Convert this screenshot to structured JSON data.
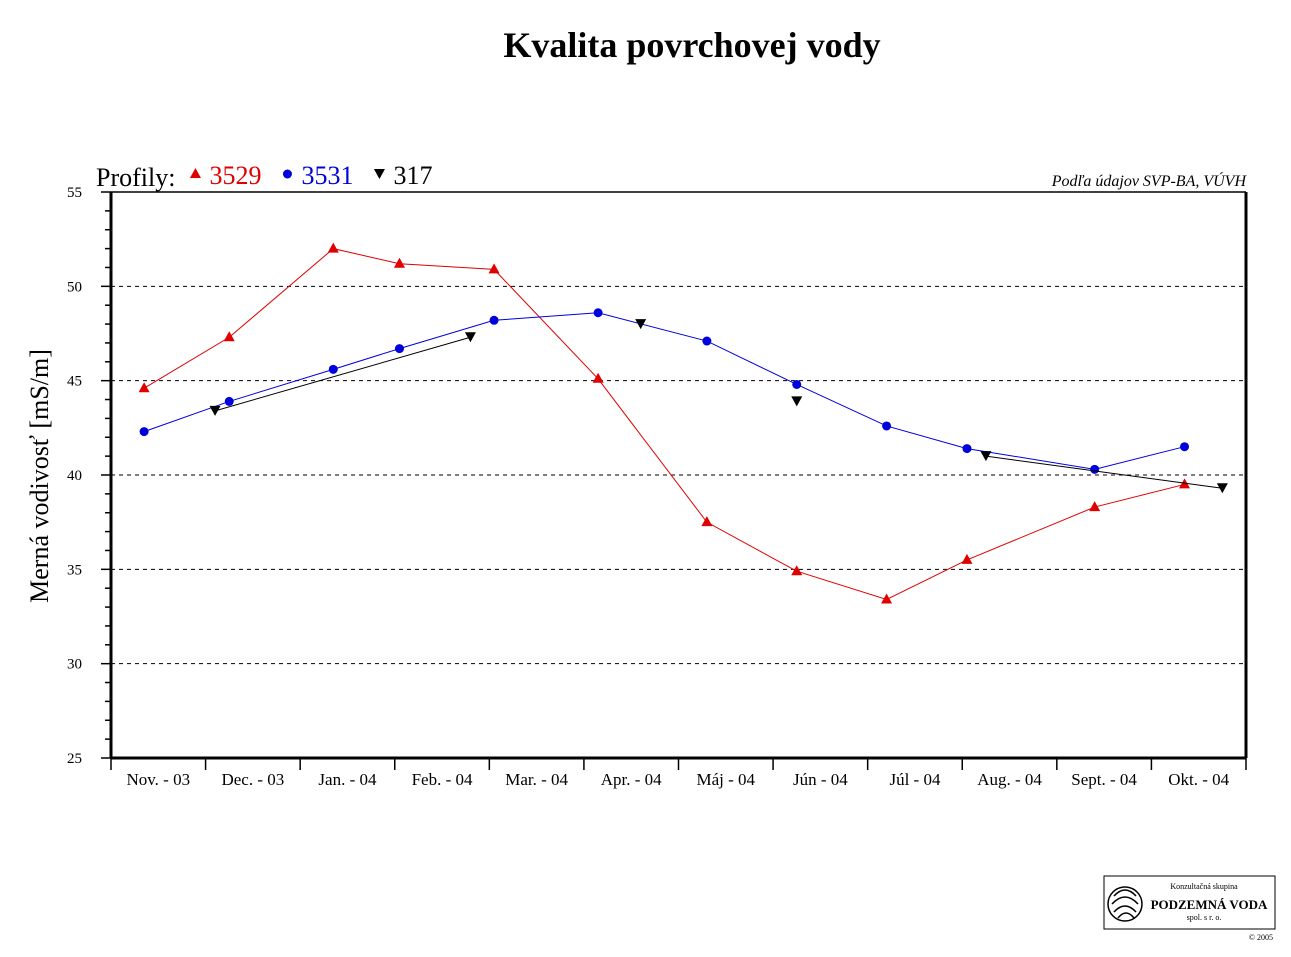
{
  "chart_data": {
    "type": "line",
    "title": "Kvalita povrchovej vody",
    "ylabel": "Merná vodivosť [mS/m]",
    "xlabel": "",
    "categories": [
      "Nov. - 03",
      "Dec. - 03",
      "Jan. - 04",
      "Feb. - 04",
      "Mar. - 04",
      "Apr. - 04",
      "Máj - 04",
      "Jún - 04",
      "Júl - 04",
      "Aug. - 04",
      "Sept. - 04",
      "Okt. - 04"
    ],
    "ylim": [
      25,
      55
    ],
    "yticks": [
      25,
      30,
      35,
      40,
      45,
      50,
      55
    ],
    "grid": "horizontal dashed at 30, 35, 40, 45, 50",
    "legend_prefix": "Profily:",
    "legend_placement": "top-left",
    "series": [
      {
        "name": "3529",
        "color": "#e00000",
        "marker": "triangle-up",
        "points": [
          {
            "x": 0.35,
            "y": 44.6
          },
          {
            "x": 1.25,
            "y": 47.3
          },
          {
            "x": 2.35,
            "y": 52.0
          },
          {
            "x": 3.05,
            "y": 51.2
          },
          {
            "x": 4.05,
            "y": 50.9
          },
          {
            "x": 5.15,
            "y": 45.1
          },
          {
            "x": 6.3,
            "y": 37.5
          },
          {
            "x": 7.25,
            "y": 34.9
          },
          {
            "x": 8.2,
            "y": 33.4
          },
          {
            "x": 9.05,
            "y": 35.5
          },
          {
            "x": 10.4,
            "y": 38.3
          },
          {
            "x": 11.35,
            "y": 39.5
          }
        ],
        "segments": [
          [
            0,
            11
          ]
        ]
      },
      {
        "name": "3531",
        "color": "#0000dd",
        "marker": "circle",
        "points": [
          {
            "x": 0.35,
            "y": 42.3
          },
          {
            "x": 1.25,
            "y": 43.9
          },
          {
            "x": 2.35,
            "y": 45.6
          },
          {
            "x": 3.05,
            "y": 46.7
          },
          {
            "x": 4.05,
            "y": 48.2
          },
          {
            "x": 5.15,
            "y": 48.6
          },
          {
            "x": 6.3,
            "y": 47.1
          },
          {
            "x": 7.25,
            "y": 44.8
          },
          {
            "x": 8.2,
            "y": 42.6
          },
          {
            "x": 9.05,
            "y": 41.4
          },
          {
            "x": 10.4,
            "y": 40.3
          },
          {
            "x": 11.35,
            "y": 41.5
          }
        ],
        "segments": [
          [
            0,
            11
          ]
        ]
      },
      {
        "name": "317",
        "color": "#000000",
        "marker": "triangle-down",
        "points": [
          {
            "x": 1.1,
            "y": 43.4
          },
          {
            "x": 3.8,
            "y": 47.3
          },
          {
            "x": 5.6,
            "y": 48.0
          },
          {
            "x": 7.25,
            "y": 43.9
          },
          {
            "x": 9.25,
            "y": 41.0
          },
          {
            "x": 11.75,
            "y": 39.3
          }
        ],
        "segments": [
          [
            0,
            1
          ],
          [
            4,
            5
          ]
        ]
      }
    ],
    "source_note": "Podľa údajov SVP-BA, VÚVH"
  },
  "logo": {
    "line1": "Konzultačná skupina",
    "line2": "PODZEMNÁ VODA",
    "line3": "spol. s r. o.",
    "copyright": "© 2005",
    "icon": "swirl-logo-icon"
  }
}
